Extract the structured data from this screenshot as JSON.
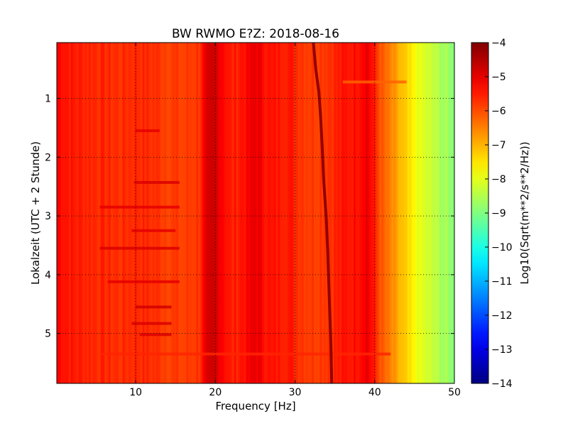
{
  "chart_data": {
    "type": "heatmap",
    "title": "BW RWMO E?Z: 2018-08-16",
    "xlabel": "Frequency [Hz]",
    "ylabel": "Lokalzeit (UTC + 2 Stunde)",
    "xlim": [
      0.1,
      50
    ],
    "ylim": [
      5.85,
      0.05
    ],
    "x_ticks": [
      "10",
      "20",
      "30",
      "40",
      "50"
    ],
    "x_tick_values": [
      10,
      20,
      30,
      40,
      50
    ],
    "y_ticks": [
      "1",
      "2",
      "3",
      "4",
      "5"
    ],
    "y_tick_values": [
      1,
      2,
      3,
      4,
      5
    ],
    "grid": true,
    "colormap": "jet",
    "colorbar": {
      "label": "Log10(Sqrt(m**2/s**2/Hz))",
      "range": [
        -14,
        -4
      ],
      "ticks": [
        "−4",
        "−5",
        "−6",
        "−7",
        "−8",
        "−9",
        "−10",
        "−11",
        "−12",
        "−13",
        "−14"
      ],
      "tick_values": [
        -4,
        -5,
        -6,
        -7,
        -8,
        -9,
        -10,
        -11,
        -12,
        -13,
        -14
      ]
    },
    "spectrum_profile": {
      "frequency_hz": [
        0,
        2,
        5,
        8,
        10,
        12,
        14,
        16,
        18,
        19,
        20,
        21,
        22,
        24,
        25,
        27,
        29,
        30,
        32,
        34,
        36,
        38,
        39,
        40,
        41,
        42,
        43,
        44,
        45,
        46,
        47,
        48,
        49,
        50
      ],
      "level": [
        -5.2,
        -5.5,
        -5.6,
        -5.7,
        -5.6,
        -5.7,
        -5.8,
        -5.9,
        -5.7,
        -5.0,
        -4.8,
        -5.2,
        -5.6,
        -5.3,
        -5.0,
        -5.5,
        -5.4,
        -5.6,
        -5.8,
        -5.7,
        -5.5,
        -5.3,
        -5.0,
        -5.6,
        -6.2,
        -6.6,
        -7.0,
        -7.4,
        -7.8,
        -8.1,
        -8.3,
        -8.5,
        -8.7,
        -8.9
      ]
    },
    "traces": [
      {
        "name": "",
        "level": -4.2,
        "frequency_hz": [
          32.3,
          32.6,
          33.0,
          33.2,
          33.4,
          33.6,
          33.9,
          34.1,
          34.3,
          34.5,
          34.6
        ],
        "time_h": [
          0.05,
          0.5,
          0.9,
          1.3,
          1.8,
          2.4,
          3.0,
          3.6,
          4.4,
          5.2,
          5.85
        ]
      }
    ],
    "banded_rows": [
      {
        "time_h": 0.72,
        "frequency_hz": [
          36,
          44
        ],
        "level": -6.2
      },
      {
        "time_h": 1.55,
        "frequency_hz": [
          10,
          13
        ],
        "level": -5.0
      },
      {
        "time_h": 2.43,
        "frequency_hz": [
          9.8,
          15.5
        ],
        "level": -4.9
      },
      {
        "time_h": 2.85,
        "frequency_hz": [
          5.5,
          15.5
        ],
        "level": -5.0
      },
      {
        "time_h": 3.25,
        "frequency_hz": [
          9.5,
          15
        ],
        "level": -5.0
      },
      {
        "time_h": 3.55,
        "frequency_hz": [
          5.5,
          15.5
        ],
        "level": -4.9
      },
      {
        "time_h": 4.12,
        "frequency_hz": [
          6.5,
          15.5
        ],
        "level": -5.0
      },
      {
        "time_h": 4.55,
        "frequency_hz": [
          10,
          14.5
        ],
        "level": -4.8
      },
      {
        "time_h": 4.83,
        "frequency_hz": [
          9.5,
          14.5
        ],
        "level": -4.9
      },
      {
        "time_h": 5.02,
        "frequency_hz": [
          10.5,
          14.5
        ],
        "level": -4.9
      },
      {
        "time_h": 5.35,
        "frequency_hz": [
          5.5,
          42
        ],
        "level": -5.6
      }
    ]
  }
}
